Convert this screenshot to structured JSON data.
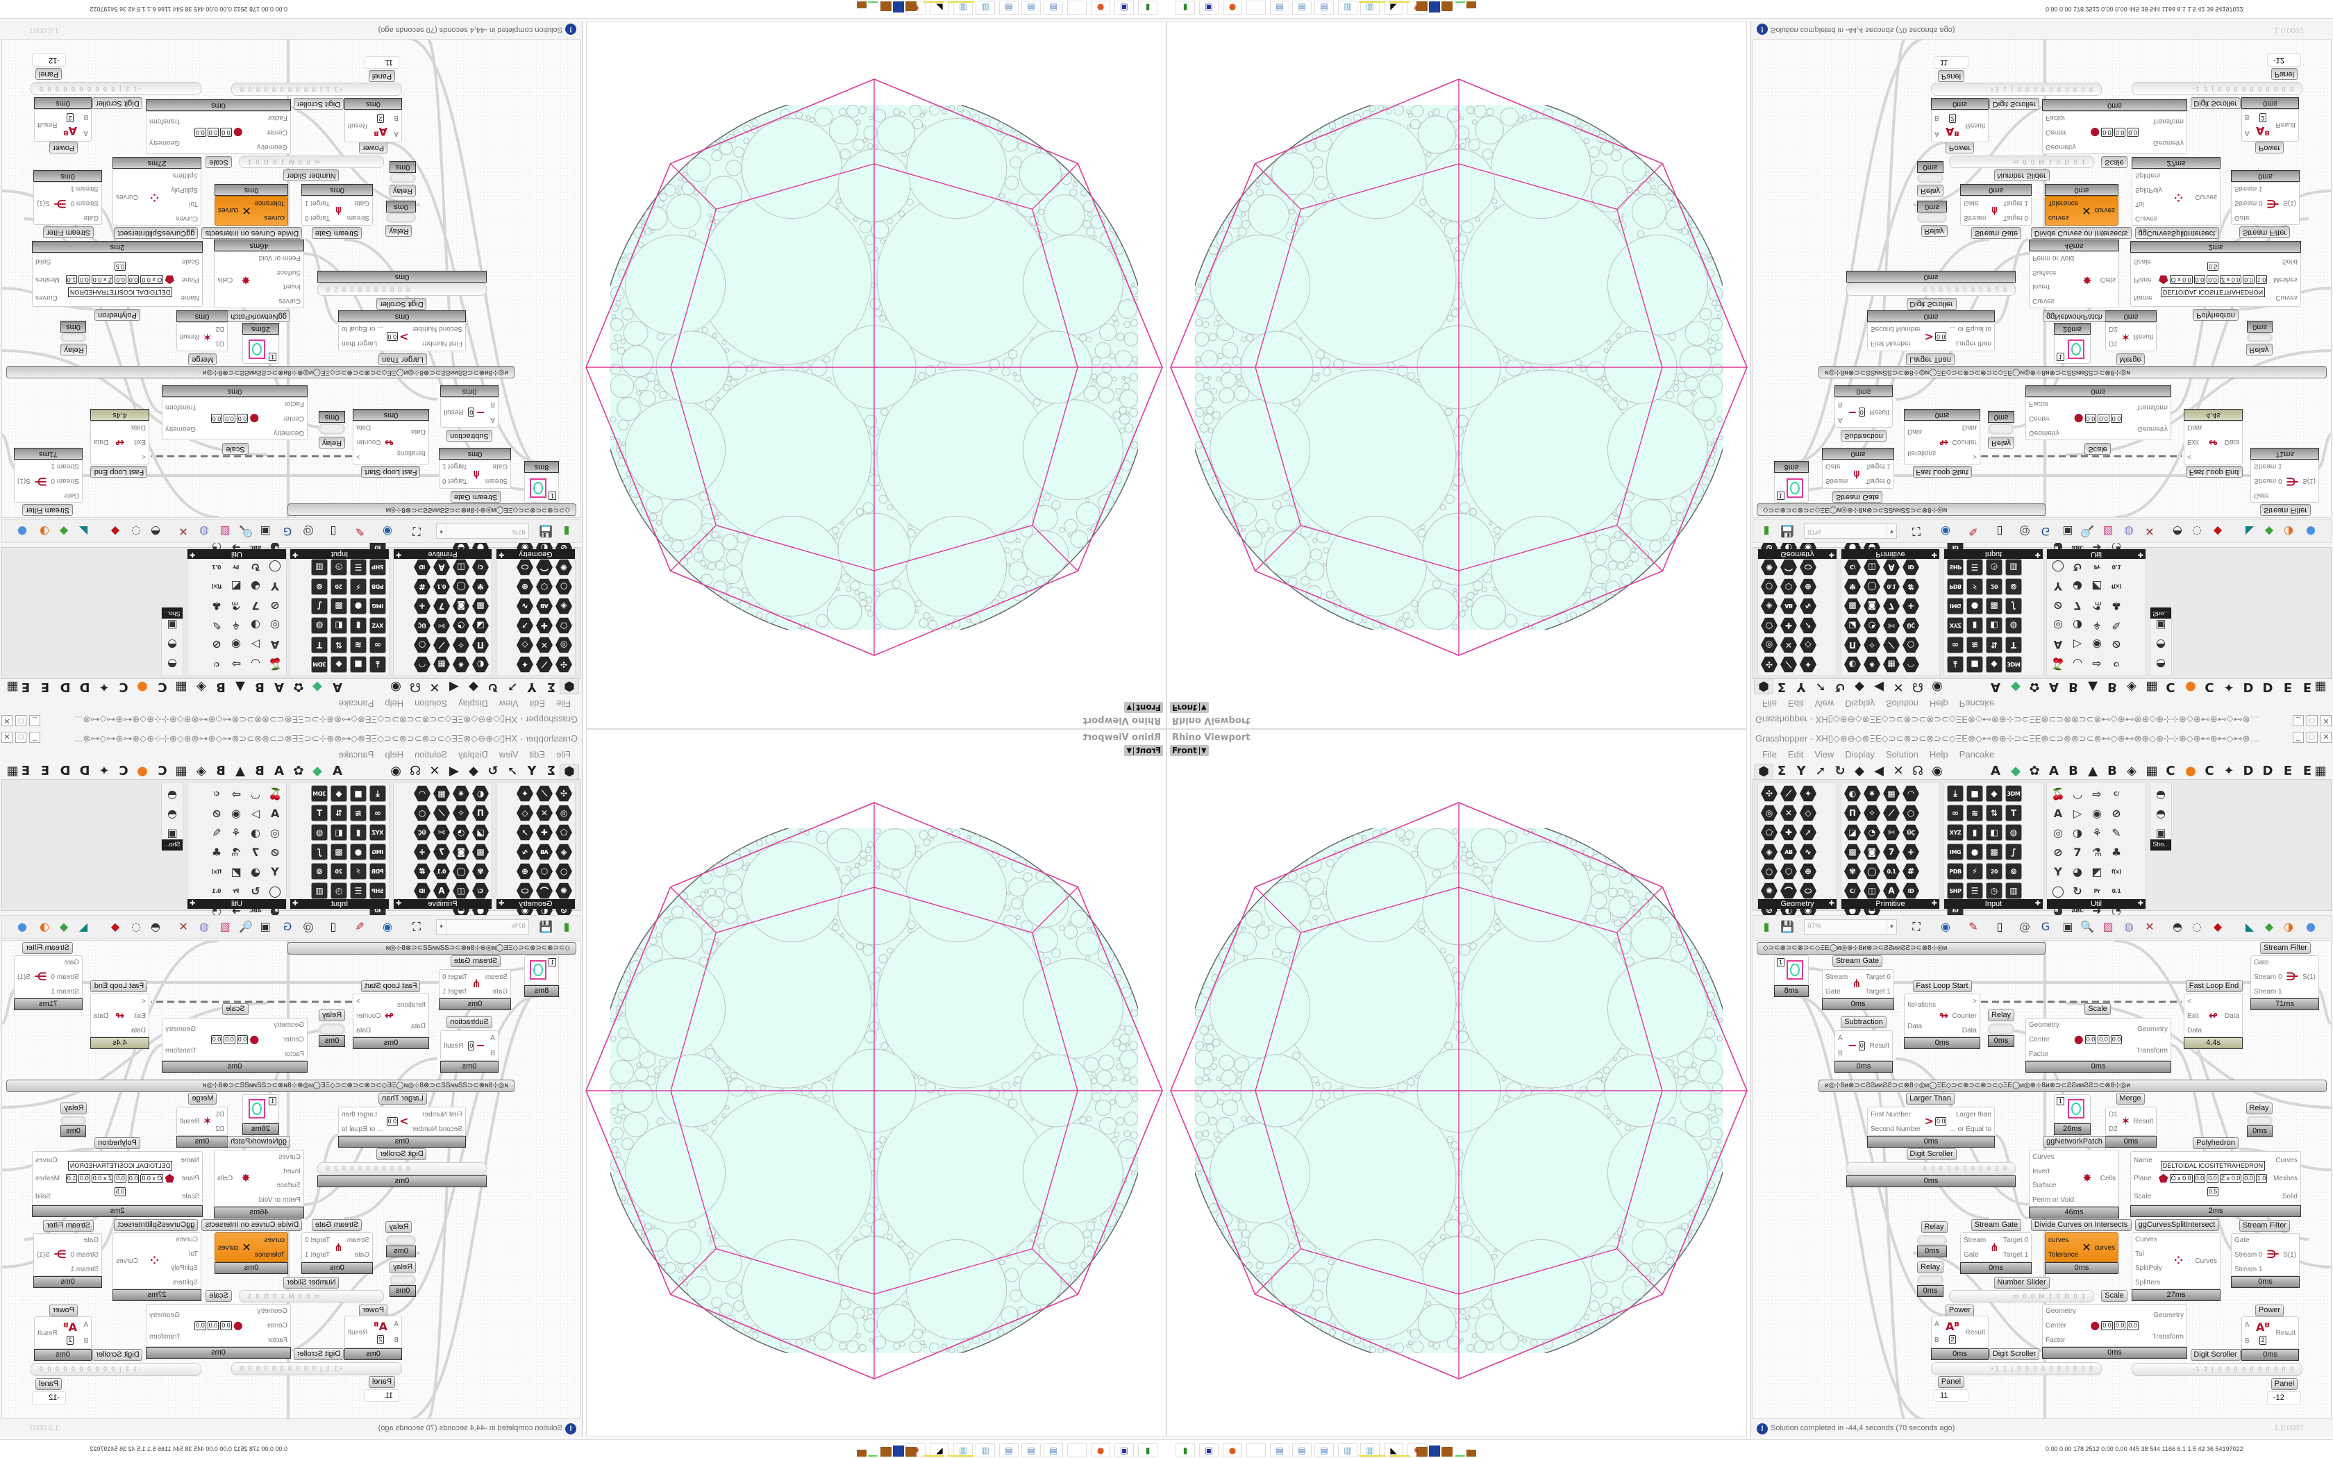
{
  "viewport": {
    "title": "Rhino Viewport",
    "view": "Front"
  },
  "gh": {
    "title": "Grasshopper - XH▯◇⊕⊖◇⊗ΞΕ◇⊃⊂⊗⊃⊂⊗⊃⊂◇ΞΕ⊗◇⊷⊗⊕⊹⊃⊂ΞΕ⊗⊂⊃⊗⊗⊃⊂⊗⊷◇⊕⊷⊗⊕◇⊕⊹⊹⊕◇⊕⊷⊕⊷◇⊷⊗⊕⊹⊃⊂ΞΕ⊗⊂⊃⊗⊗…",
    "menu": [
      "File",
      "Edit",
      "View",
      "Display",
      "Solution",
      "Help",
      "Pancake"
    ],
    "tabs": [
      {
        "icon": "params-hexagon-icon",
        "text": "⬢"
      },
      {
        "icon": "maths-sigma-icon",
        "text": "Σ"
      },
      {
        "icon": "sets-icon",
        "text": "Y"
      },
      {
        "icon": "vector-icon",
        "text": "➚"
      },
      {
        "icon": "curve-icon",
        "text": "↻"
      },
      {
        "icon": "surface-icon",
        "text": "◆"
      },
      {
        "icon": "mesh-icon",
        "text": "◀"
      },
      {
        "icon": "intersect-icon",
        "text": "✕"
      },
      {
        "icon": "transform-icon",
        "text": "☊"
      },
      {
        "icon": "display-eye-icon",
        "text": "◉"
      },
      {
        "icon": "tab-a",
        "text": "A"
      },
      {
        "icon": "crystal-icon",
        "text": "◆"
      },
      {
        "icon": "flower-icon",
        "text": "✿"
      },
      {
        "icon": "tab-a2",
        "text": "A"
      },
      {
        "icon": "tab-b",
        "text": "B"
      },
      {
        "icon": "mountain-icon",
        "text": "▲"
      },
      {
        "icon": "tab-b2",
        "text": "B"
      },
      {
        "icon": "shield-icon",
        "text": "◈"
      },
      {
        "icon": "grid-icon",
        "text": "▦"
      },
      {
        "icon": "tab-c",
        "text": "C"
      },
      {
        "icon": "orange-dot-icon",
        "text": "●"
      },
      {
        "icon": "tab-c2",
        "text": "C"
      },
      {
        "icon": "bird-icon",
        "text": "✦"
      },
      {
        "icon": "tab-d",
        "text": "D"
      },
      {
        "icon": "tab-d2",
        "text": "D"
      },
      {
        "icon": "tab-e",
        "text": "E"
      },
      {
        "icon": "tab-e2",
        "text": "E"
      },
      {
        "icon": "more-icon",
        "text": "▦"
      }
    ],
    "ribbon": {
      "panels": [
        {
          "label": "Geometry",
          "style": "hex",
          "icons": [
            "✣",
            "⟋",
            "✦",
            "◎",
            "✕",
            "◇",
            "⬠",
            "✚",
            "➚",
            "◈",
            "AB",
            "∿",
            "○",
            "⬡",
            "⊕",
            "✺",
            "⌒",
            "⬭",
            "⊘",
            "◐",
            "◉",
            "✱",
            "⋒"
          ]
        },
        {
          "label": "Primitive",
          "style": "hex",
          "icons": [
            "◐",
            "✷",
            "▦",
            "◠",
            "П",
            "✧",
            "⟋",
            "○",
            "◪",
            "◔",
            "✄",
            "ÜÇ",
            "▩",
            "◙",
            "7",
            "+",
            "✾",
            "◯",
            "0.1",
            "#",
            "C/",
            "◫",
            "A",
            "ID",
            "●",
            "◒"
          ]
        },
        {
          "label": "Input",
          "style": "sq",
          "icons": [
            "⤓",
            "■",
            "◆",
            "3DM",
            "∞",
            "≋",
            "⇅",
            "T",
            "XYZ",
            "▮",
            "◧",
            "◍",
            "IMG",
            "●",
            "▩",
            "∫",
            "PDB",
            "⚡",
            "20",
            "⊚",
            "SHP",
            "☰",
            "◷",
            "▥",
            "ID"
          ]
        },
        {
          "label": "Util",
          "style": "lt",
          "icons": [
            "🍒",
            "◡",
            "⇨",
            "C/",
            "A",
            "▷",
            "◉",
            "⊘",
            "◎",
            "◑",
            "⚘",
            "✎",
            "⊘",
            "7",
            "⚗",
            "♣",
            "Y",
            "◕",
            "◩",
            "f(x)",
            "◯",
            "↻",
            "Pr",
            "0.1",
            "◕",
            "ABC",
            "➜",
            "◔",
            "✖"
          ]
        }
      ],
      "extra": {
        "label": "Sho..."
      }
    },
    "toolbar": {
      "zoom": "97%",
      "icons": [
        {
          "name": "new-document-icon",
          "g": "▮",
          "c": "#3a9a2a"
        },
        {
          "name": "save-icon",
          "g": "💾",
          "c": "#2233aa"
        },
        {
          "name": "zoom-extents-icon",
          "g": "⛶",
          "c": "#111"
        },
        {
          "name": "preview-eye-icon",
          "g": "◉",
          "c": "#2060b0"
        },
        {
          "name": "sketch-icon",
          "g": "✎",
          "c": "#c02020"
        },
        {
          "name": "cluster-icon",
          "g": "▯",
          "c": "#111"
        },
        {
          "name": "email-icon",
          "g": "@",
          "c": "#555"
        },
        {
          "name": "gha-icon",
          "g": "G",
          "c": "#1a4a9a"
        },
        {
          "name": "canvas-image-icon",
          "g": "▣",
          "c": "#333"
        },
        {
          "name": "search-icon",
          "g": "🔍",
          "c": "#334"
        },
        {
          "name": "package-icon",
          "g": "▨",
          "c": "#d04080"
        },
        {
          "name": "bulb-icon",
          "g": "◍",
          "c": "#8080d0"
        },
        {
          "name": "wires-icon",
          "g": "✕",
          "c": "#a03030"
        },
        {
          "name": "shaded-preview-icon",
          "g": "◓",
          "c": "#333"
        },
        {
          "name": "wire-preview-icon",
          "g": "◌",
          "c": "#555"
        },
        {
          "name": "bake-icon",
          "g": "◆",
          "c": "#c01010"
        },
        {
          "name": "teal-shape-icon",
          "g": "◣",
          "c": "#108080"
        },
        {
          "name": "green-shape-icon",
          "g": "◆",
          "c": "#40a040"
        },
        {
          "name": "sphere-icon",
          "g": "◑",
          "c": "#e07020"
        },
        {
          "name": "blue-sphere-icon",
          "g": "●",
          "c": "#4a90e0"
        }
      ]
    },
    "canvas": {
      "groups": [
        "◇⊃⊂⊗⊃⊂⊗⊃⊂◇ΞΕ◯ᴎ◎⊕⊹8ᴎ⊗⊃⊂ƧƧᴎᴎƧƧ⊃⊂⊗8⊹◎ᴎ",
        "ᴎ◎⊹8ᴎ⊗⊃⊂ƧƧᴎᴎƧƧ⊃⊂⊗8⊹◎ᴎ◯ΞΕ◇⊃⊂⊗⊃⊂⊗⊃⊂◇ΞΕ◯ᴎ◎⊕⊹8ᴎ⊗⊃⊂ƧƧᴎᴎƧƧ⊃⊂⊗8⊹◎ᴎ"
      ],
      "components": [
        {
          "id": "circle1",
          "kind": "circle",
          "value": "1",
          "time": "8ms"
        },
        {
          "id": "stream_gate_1",
          "label": "Stream Gate",
          "inputs": [
            "Stream",
            "Gate"
          ],
          "outputs": [
            "Target 0",
            "Target 1"
          ],
          "glyph": "⋔",
          "time": "0ms"
        },
        {
          "id": "fast_loop_start",
          "label": "Fast Loop Start",
          "inputs": [
            "Iterations",
            "Data"
          ],
          "outputs": [
            ">",
            "Counter",
            "Data"
          ],
          "glyph": "↬",
          "time": "0ms"
        },
        {
          "id": "relay1",
          "kind": "relay",
          "label": "Relay",
          "time": "0ms"
        },
        {
          "id": "scale1",
          "label": "Scale",
          "inputs": [
            "Geometry",
            "Center",
            "Factor"
          ],
          "outputs": [
            "Geometry",
            "Transform"
          ],
          "params": [
            "0.0",
            "0.0",
            "0.0"
          ],
          "glyph": "●",
          "time": "0ms"
        },
        {
          "id": "fast_loop_end",
          "label": "Fast Loop End",
          "inputs": [
            "<",
            "Exit",
            "Data"
          ],
          "outputs": [
            "Data"
          ],
          "glyph": "↫",
          "time": "4.4s",
          "olive": true
        },
        {
          "id": "stream_filter_1",
          "label": "Stream Filter",
          "inputs": [
            "Gate",
            "Stream 0",
            "Stream 1"
          ],
          "outputs": [
            "S(1)"
          ],
          "glyph": "⋺",
          "time": "71ms"
        },
        {
          "id": "subtraction",
          "label": "Subtraction",
          "inputs": [
            "A",
            "B"
          ],
          "outputs": [
            "Result"
          ],
          "params": [
            "0"
          ],
          "glyph": "−",
          "time": "0ms"
        },
        {
          "id": "larger_than",
          "label": "Larger Than",
          "inputs": [
            "First Number",
            "Second Number"
          ],
          "outputs": [
            "Larger than",
            "... or Equal to"
          ],
          "params": [
            "0.0"
          ],
          "glyph": ">",
          "time": "0ms"
        },
        {
          "id": "circle2",
          "kind": "circle",
          "value": "1",
          "time": "26ms"
        },
        {
          "id": "merge",
          "label": "Merge",
          "inputs": [
            "D1",
            "D2"
          ],
          "outputs": [
            "Result"
          ],
          "glyph": "✶",
          "time": "0ms"
        },
        {
          "id": "relay2",
          "kind": "relay",
          "label": "Relay",
          "time": "0ms"
        },
        {
          "id": "digit_scroller_1",
          "kind": "slider",
          "label": "Digit Scroller",
          "value": "0 0 0 0 0 0 0 0 0 2 0",
          "time": "0ms"
        },
        {
          "id": "network_patch",
          "label": "ggNetworkPatch",
          "inputs": [
            "Curves",
            "Invert",
            "Surface",
            "Perim or Void"
          ],
          "outputs": [
            "Cells"
          ],
          "glyph": "✸",
          "time": "46ms"
        },
        {
          "id": "polyhedron",
          "label": "Polyhedron",
          "inputs": [
            "Name",
            "Plane",
            "Scale"
          ],
          "outputs": [
            "Curves",
            "Meshes",
            "Solid"
          ],
          "name_value": "DELTOIDAL ICOSITETRAHEDRON",
          "params": [
            "O x 0.0",
            "0.0",
            "0.0",
            "Z x 0.0",
            "0.0",
            "1.0",
            "0.5"
          ],
          "glyph": "⬟",
          "time": "2ms"
        },
        {
          "id": "relay3",
          "kind": "relay",
          "label": "Relay",
          "time": "0ms"
        },
        {
          "id": "stream_gate_2",
          "label": "Stream Gate",
          "inputs": [
            "Stream",
            "Gate"
          ],
          "outputs": [
            "Target 0",
            "Target 1"
          ],
          "glyph": "⋔",
          "time": "0ms"
        },
        {
          "id": "divide_curves",
          "label": "Divide Curves on Intersects",
          "inputs": [
            "curves",
            "Tolerance"
          ],
          "outputs": [
            "curves"
          ],
          "glyph": "✕",
          "time": "0ms",
          "orange": true
        },
        {
          "id": "split_intersect",
          "label": "ggCurvesSplitIntersect",
          "inputs": [
            "Curves",
            "Tol",
            "SplitPoly",
            "Splitters"
          ],
          "outputs": [
            "Curves"
          ],
          "glyph": "⁘",
          "time": "27ms"
        },
        {
          "id": "stream_filter_2",
          "label": "Stream Filter",
          "inputs": [
            "Gate",
            "Stream 0",
            "Stream 1"
          ],
          "outputs": [
            "S(1)"
          ],
          "glyph": "⋺",
          "time": "0ms"
        },
        {
          "id": "relay4",
          "kind": "relay",
          "label": "Relay",
          "time": "0ms"
        },
        {
          "id": "number_slider",
          "kind": "slider",
          "label": "Number Slider",
          "value": "m 0.0  M 1.0  D 0   1"
        },
        {
          "id": "scale2",
          "label": "Scale",
          "inputs": [
            "Geometry",
            "Center",
            "Factor"
          ],
          "outputs": [
            "Geometry",
            "Transform"
          ],
          "params": [
            "0.0",
            "0.0",
            "0.0"
          ],
          "glyph": "●",
          "time": "0ms"
        },
        {
          "id": "power_left",
          "label": "Power",
          "inputs": [
            "A",
            "B"
          ],
          "outputs": [
            "Result"
          ],
          "params": [
            "2"
          ],
          "glyph": "Aᴮ",
          "time": "0ms"
        },
        {
          "id": "power_right",
          "label": "Power",
          "inputs": [
            "A",
            "B"
          ],
          "outputs": [
            "Result"
          ],
          "params": [
            "2"
          ],
          "glyph": "Aᴮ",
          "time": "0ms"
        },
        {
          "id": "digit_scroller_2",
          "kind": "slider",
          "label": "Digit Scroller",
          "value": "+1 1 | 0 0 0 0 0 0 0 0 0 0"
        },
        {
          "id": "digit_scroller_3",
          "kind": "slider",
          "label": "Digit Scroller",
          "value": "-1 2 | 0 0 0 0 0 0 0 0 0 0"
        },
        {
          "id": "panel_left",
          "kind": "panel",
          "label": "Panel",
          "value": "11"
        },
        {
          "id": "panel_right",
          "kind": "panel",
          "label": "Panel",
          "value": "-12"
        }
      ]
    },
    "status": {
      "message": "Solution completed in -44,4 seconds (70 seconds ago)",
      "version": "1.0.0007"
    }
  },
  "taskbar": {
    "icons": [
      {
        "name": "battery-icon",
        "g": "▮",
        "c": "#2a8a2a"
      },
      {
        "name": "floppy-64-icon",
        "g": "▣",
        "c": "#2233aa"
      },
      {
        "name": "firefox-icon",
        "g": "●",
        "c": "#e05a20"
      },
      {
        "name": "blank-icon",
        "g": "",
        "c": "#ccc"
      },
      {
        "name": "calculator-icon",
        "g": "▤",
        "c": "#5080c0"
      },
      {
        "name": "calculator-icon-2",
        "g": "▤",
        "c": "#5080c0"
      },
      {
        "name": "calculator-icon-3",
        "g": "▤",
        "c": "#5080c0"
      },
      {
        "name": "notepad-icon",
        "g": "▥",
        "c": "#60a0c0"
      },
      {
        "name": "notepad-icon-2",
        "g": "▥",
        "c": "#60a0c0"
      },
      {
        "name": "inkscape-icon",
        "g": "◣",
        "c": "#000"
      },
      {
        "name": "rhino-icon",
        "g": "✺",
        "c": "#c01010"
      }
    ],
    "stats": "0.00 0.00  178  2512 0.00 0.00  445   38   544  1166  6.1   1.5   42   36  54197022"
  },
  "colors": {
    "disc_fill": "#e2fcf6",
    "circle_stroke": "#bcc3c1",
    "pink": "#e0399a",
    "orange": "#f59a23"
  }
}
